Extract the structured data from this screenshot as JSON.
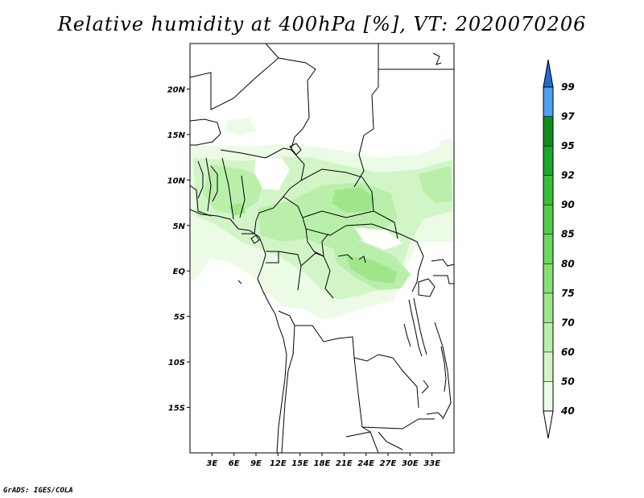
{
  "title": "Relative humidity at 400hPa [%], VT: 2020070206",
  "credit": "GrADS: IGES/COLA",
  "map": {
    "lon_range": [
      0,
      36
    ],
    "lat_range": [
      -20,
      25
    ],
    "lat_ticks": [
      {
        "value": 20,
        "label": "20N"
      },
      {
        "value": 15,
        "label": "15N"
      },
      {
        "value": 10,
        "label": "10N"
      },
      {
        "value": 5,
        "label": "5N"
      },
      {
        "value": 0,
        "label": "EQ"
      },
      {
        "value": -5,
        "label": "5S"
      },
      {
        "value": -10,
        "label": "10S"
      },
      {
        "value": -15,
        "label": "15S"
      }
    ],
    "lon_ticks": [
      {
        "value": 3,
        "label": "3E"
      },
      {
        "value": 6,
        "label": "6E"
      },
      {
        "value": 9,
        "label": "9E"
      },
      {
        "value": 12,
        "label": "12E"
      },
      {
        "value": 15,
        "label": "15E"
      },
      {
        "value": 18,
        "label": "18E"
      },
      {
        "value": 21,
        "label": "21E"
      },
      {
        "value": 24,
        "label": "24E"
      },
      {
        "value": 27,
        "label": "27E"
      },
      {
        "value": 30,
        "label": "30E"
      },
      {
        "value": 33,
        "label": "33E"
      }
    ]
  },
  "colorbar": {
    "levels": [
      "40",
      "50",
      "60",
      "70",
      "75",
      "80",
      "85",
      "90",
      "92",
      "95",
      "97",
      "99"
    ],
    "colors": [
      "#ebfbe6",
      "#d2f5c8",
      "#b9efaa",
      "#9fe68b",
      "#86df73",
      "#6cd75e",
      "#52cc4a",
      "#36be37",
      "#1ca62c",
      "#118c1c",
      "#4ea0f0",
      "#2c82e6",
      "#1e6ad2"
    ],
    "under_color": "#ffffff"
  },
  "humidity_colors": {
    "c40": "#ebfbe6",
    "c50": "#d2f5c8",
    "c60": "#b9efaa",
    "c70": "#9fe68b"
  }
}
